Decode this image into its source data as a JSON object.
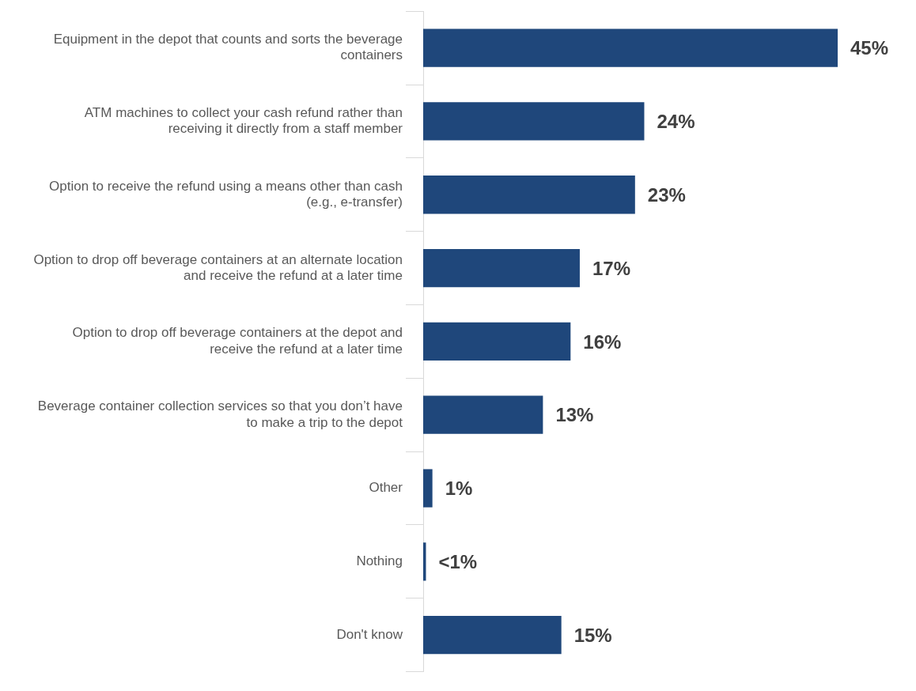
{
  "chart_data": {
    "type": "bar",
    "orientation": "horizontal",
    "categories": [
      "Equipment in the depot that counts and sorts the beverage containers",
      "ATM machines to collect your cash refund rather than receiving it directly from a staff member",
      "Option to receive the refund using a means other than cash (e.g., e-transfer)",
      "Option to drop off beverage containers at an alternate location and receive the refund at a later time",
      "Option to drop off beverage containers at the depot and receive the refund at a later time",
      "Beverage container collection services so that you don’t have to make a trip to the depot",
      "Other",
      "Nothing",
      "Don't know"
    ],
    "values": [
      45,
      24,
      23,
      17,
      16,
      13,
      1,
      0.3,
      15
    ],
    "value_labels": [
      "45%",
      "24%",
      "23%",
      "17%",
      "16%",
      "13%",
      "1%",
      "<1%",
      "15%"
    ],
    "color": "#1f477b",
    "tick_labels": "y",
    "legend": false
  }
}
